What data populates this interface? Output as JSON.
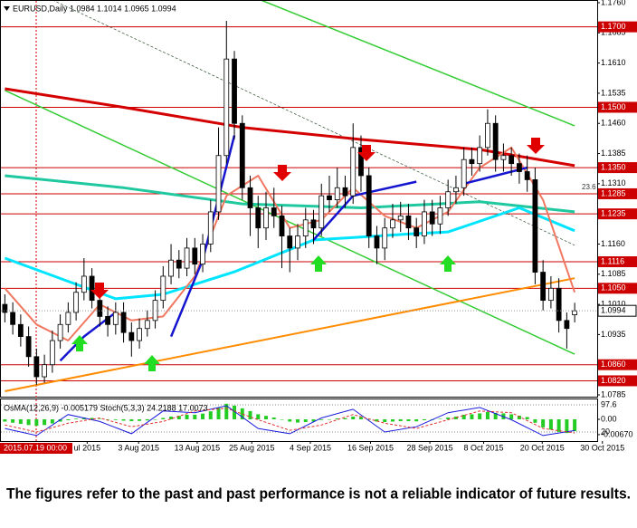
{
  "chart_data": [
    {
      "type": "candlestick",
      "title": "EURUSD,Daily  1.0984 1.1014 1.0965 1.0994",
      "cursor_label": "2015.07.19 00:00",
      "x": [
        0,
        1,
        2,
        3,
        4,
        5,
        6,
        7,
        8,
        9,
        10,
        11,
        12,
        13,
        14,
        15,
        16,
        17,
        18,
        19,
        20,
        21,
        22,
        23,
        24,
        25,
        26,
        27,
        28,
        29,
        30,
        31,
        32,
        33,
        34,
        35,
        36,
        37,
        38,
        39,
        40,
        41,
        42,
        43,
        44,
        45,
        46,
        47,
        48,
        49,
        50,
        51,
        52,
        53,
        54,
        55,
        56,
        57,
        58,
        59,
        60,
        61,
        62,
        63,
        64,
        65,
        66,
        67,
        68,
        69,
        70,
        71,
        72
      ],
      "open": [
        1.101,
        1.099,
        1.096,
        1.093,
        1.088,
        1.083,
        1.086,
        1.092,
        1.096,
        1.099,
        1.104,
        1.108,
        1.102,
        1.098,
        1.096,
        1.099,
        1.094,
        1.092,
        1.095,
        1.097,
        1.102,
        1.108,
        1.112,
        1.11,
        1.115,
        1.111,
        1.116,
        1.124,
        1.138,
        1.162,
        1.146,
        1.13,
        1.125,
        1.12,
        1.125,
        1.123,
        1.118,
        1.115,
        1.118,
        1.122,
        1.12,
        1.128,
        1.127,
        1.13,
        1.128,
        1.14,
        1.133,
        1.118,
        1.115,
        1.12,
        1.122,
        1.123,
        1.12,
        1.118,
        1.124,
        1.121,
        1.125,
        1.129,
        1.13,
        1.137,
        1.136,
        1.14,
        1.146,
        1.137,
        1.138,
        1.136,
        1.134,
        1.132,
        1.109,
        1.102,
        1.105,
        1.097,
        1.0984
      ],
      "high": [
        1.1035,
        1.1015,
        1.0985,
        1.0955,
        1.09,
        1.0885,
        1.0945,
        1.0985,
        1.1015,
        1.1065,
        1.1125,
        1.11,
        1.1045,
        1.1005,
        1.1015,
        1.1015,
        1.0965,
        1.0975,
        1.0995,
        1.1045,
        1.1105,
        1.116,
        1.1145,
        1.1175,
        1.1175,
        1.1185,
        1.127,
        1.145,
        1.1715,
        1.164,
        1.148,
        1.133,
        1.128,
        1.129,
        1.13,
        1.1255,
        1.12,
        1.121,
        1.125,
        1.1245,
        1.131,
        1.133,
        1.135,
        1.133,
        1.146,
        1.143,
        1.135,
        1.1205,
        1.1225,
        1.126,
        1.1265,
        1.126,
        1.1225,
        1.127,
        1.127,
        1.128,
        1.132,
        1.133,
        1.14,
        1.14,
        1.143,
        1.1495,
        1.148,
        1.141,
        1.14,
        1.1385,
        1.138,
        1.135,
        1.112,
        1.108,
        1.1075,
        1.099,
        1.1014
      ],
      "low": [
        1.0965,
        1.0935,
        1.0905,
        1.0855,
        1.081,
        1.0815,
        1.084,
        1.09,
        1.094,
        1.097,
        1.102,
        1.1,
        1.0955,
        1.093,
        1.0935,
        1.0915,
        1.088,
        1.09,
        1.093,
        1.095,
        1.1,
        1.106,
        1.1075,
        1.108,
        1.1085,
        1.109,
        1.114,
        1.122,
        1.136,
        1.142,
        1.127,
        1.118,
        1.115,
        1.117,
        1.12,
        1.11,
        1.109,
        1.112,
        1.115,
        1.116,
        1.118,
        1.124,
        1.125,
        1.125,
        1.126,
        1.129,
        1.115,
        1.111,
        1.112,
        1.1175,
        1.119,
        1.117,
        1.115,
        1.116,
        1.118,
        1.1185,
        1.123,
        1.126,
        1.128,
        1.133,
        1.134,
        1.138,
        1.134,
        1.134,
        1.133,
        1.131,
        1.129,
        1.106,
        1.0995,
        1.1,
        1.094,
        1.09,
        1.0965
      ],
      "close": [
        1.099,
        1.096,
        1.093,
        1.088,
        1.083,
        1.086,
        1.092,
        1.096,
        1.099,
        1.104,
        1.108,
        1.102,
        1.098,
        1.096,
        1.099,
        1.094,
        1.092,
        1.095,
        1.097,
        1.102,
        1.108,
        1.112,
        1.11,
        1.115,
        1.111,
        1.116,
        1.124,
        1.138,
        1.162,
        1.146,
        1.13,
        1.125,
        1.12,
        1.125,
        1.123,
        1.118,
        1.115,
        1.118,
        1.122,
        1.12,
        1.128,
        1.127,
        1.13,
        1.128,
        1.14,
        1.133,
        1.118,
        1.115,
        1.12,
        1.122,
        1.123,
        1.12,
        1.118,
        1.124,
        1.121,
        1.125,
        1.129,
        1.13,
        1.137,
        1.136,
        1.14,
        1.146,
        1.137,
        1.138,
        1.136,
        1.134,
        1.132,
        1.109,
        1.102,
        1.105,
        1.097,
        1.095,
        1.0994
      ],
      "bull_color": "#ffffff",
      "bear_color": "#000000",
      "xlim": [
        -0.5,
        74.5
      ],
      "ylim": [
        1.0785,
        1.176
      ],
      "yticks": [
        {
          "value": 1.176,
          "label": "1.1760"
        },
        1.1685,
        {
          "value": 1.161,
          "label": "1.1610"
        },
        1.1535,
        {
          "value": 1.146,
          "label": "1.1460"
        },
        1.1385,
        {
          "value": 1.131,
          "label": "1.1310"
        },
        {
          "value": 1.116,
          "label": "1.1160"
        },
        1.1085,
        {
          "value": 1.101,
          "label": "1.1010"
        },
        1.0935,
        1.0785
      ],
      "xticks": [
        {
          "value": 10.4,
          "label": "ul 2015"
        },
        {
          "value": 16.9,
          "label": "3 Aug 2015"
        },
        {
          "value": 24.3,
          "label": "13 Aug 2015"
        },
        {
          "value": 31.2,
          "label": "25 Aug 2015"
        },
        {
          "value": 38.6,
          "label": "4 Sep 2015"
        },
        {
          "value": 46.2,
          "label": "16 Sep 2015"
        },
        {
          "value": 53.7,
          "label": "28 Sep 2015"
        },
        {
          "value": 60.5,
          "label": "8 Oct 2015"
        },
        {
          "value": 67.9,
          "label": "20 Oct 2015"
        },
        {
          "value": 75.5,
          "label": "30 Oct 2015"
        }
      ],
      "levels": {
        "color": "#cc0000",
        "values": [
          1.17,
          1.15,
          1.135,
          1.1285,
          1.1235,
          1.1116,
          1.105,
          1.086,
          1.082
        ],
        "value_labels": [
          "1.1700",
          "1.1500",
          "1.1350",
          "1.1285",
          "1.1235",
          "1.1116",
          "1.1050",
          "1.0860",
          "1.0820"
        ]
      },
      "last_price": 1.0994,
      "annotations": [
        {
          "text": "23.6",
          "y": 1.1301
        }
      ],
      "lines": [
        {
          "color": "#2f4f2f",
          "width": 0.7,
          "dash": "3,2",
          "x": [
            6,
            72
          ],
          "values": [
            1.1767,
            1.1157
          ]
        },
        {
          "color": "#33cc33",
          "width": 1.5,
          "x": [
            32.3,
            72
          ],
          "values": [
            1.1767,
            1.1454
          ]
        },
        {
          "color": "#33cc33",
          "width": 1.5,
          "x": [
            0,
            72
          ],
          "values": [
            1.1542,
            1.0886
          ]
        },
        {
          "color": "#ff8c00",
          "width": 2,
          "x": [
            0,
            72
          ],
          "values": [
            1.0794,
            1.1075
          ]
        },
        {
          "color": "#d40000",
          "width": 3,
          "x": [
            0,
            15,
            30,
            45,
            60,
            72
          ],
          "values": [
            1.1546,
            1.15,
            1.145,
            1.142,
            1.1395,
            1.1355
          ]
        },
        {
          "color": "#20c8a0",
          "width": 3,
          "x": [
            0,
            15,
            30,
            45,
            60,
            72
          ],
          "values": [
            1.133,
            1.13,
            1.126,
            1.125,
            1.1265,
            1.124
          ]
        },
        {
          "color": "#00e5ff",
          "width": 3,
          "x": [
            0,
            14,
            20,
            29,
            39,
            51,
            56,
            65,
            72
          ],
          "values": [
            1.1125,
            1.1024,
            1.1035,
            1.1091,
            1.117,
            1.1185,
            1.119,
            1.125,
            1.1193
          ]
        },
        {
          "color": "#f07860",
          "width": 2,
          "x": [
            0,
            4,
            8,
            12,
            16,
            20,
            24,
            28,
            32,
            36,
            40,
            44,
            48,
            52,
            56,
            60,
            64,
            68,
            72
          ],
          "values": [
            1.105,
            1.096,
            1.092,
            1.101,
            1.097,
            1.098,
            1.108,
            1.128,
            1.133,
            1.12,
            1.122,
            1.13,
            1.123,
            1.12,
            1.124,
            1.135,
            1.14,
            1.127,
            1.104
          ]
        },
        {
          "color": "#1515d0",
          "width": 2.5,
          "x": [
            7,
            10,
            14,
            15,
            21,
            25,
            29,
            30,
            39,
            44,
            52,
            53,
            58,
            62,
            66
          ],
          "values": [
            1.087,
            1.093,
            1.099,
            null,
            1.093,
            1.112,
            1.143,
            null,
            1.117,
            1.128,
            1.1315,
            null,
            1.131,
            1.133,
            1.135
          ]
        }
      ]
    },
    {
      "type": "osma-stoch",
      "title": "OsMA(12,26,9) -0.005179 Stoch(5,3,3) 24.2188 17.0073",
      "color": "#22cc22",
      "xlim": [
        -0.5,
        74.5
      ],
      "x": [
        0,
        1,
        2,
        3,
        4,
        5,
        6,
        7,
        8,
        9,
        10,
        11,
        12,
        13,
        14,
        15,
        16,
        17,
        18,
        19,
        20,
        21,
        22,
        23,
        24,
        25,
        26,
        27,
        28,
        29,
        30,
        31,
        32,
        33,
        34,
        35,
        36,
        37,
        38,
        39,
        40,
        41,
        42,
        43,
        44,
        45,
        46,
        47,
        48,
        49,
        50,
        51,
        52,
        53,
        54,
        55,
        56,
        57,
        58,
        59,
        60,
        61,
        62,
        63,
        64,
        65,
        66,
        67,
        68,
        69,
        70,
        71,
        72
      ],
      "values": [
        -0.001,
        -0.0015,
        -0.002,
        -0.0025,
        -0.0028,
        -0.0025,
        -0.0018,
        -0.001,
        -0.0004,
        0.0003,
        0.0008,
        0.0006,
        0.0002,
        -0.0002,
        -0.0003,
        -0.0006,
        -0.0008,
        -0.0007,
        -0.0005,
        -0.0001,
        0.0006,
        0.0012,
        0.0015,
        0.002,
        0.002,
        0.0025,
        0.0035,
        0.005,
        0.0068,
        0.006,
        0.0048,
        0.0036,
        0.0022,
        0.0015,
        0.0008,
        -0.0002,
        -0.001,
        -0.0014,
        -0.0012,
        -0.001,
        -0.0003,
        0.0,
        0.0004,
        0.0005,
        0.0012,
        0.001,
        -0.0002,
        -0.001,
        -0.0012,
        -0.001,
        -0.0008,
        -0.0008,
        -0.0009,
        -0.0004,
        -0.0003,
        0.0002,
        0.0008,
        0.0012,
        0.002,
        0.0022,
        0.0026,
        0.0032,
        0.0028,
        0.0026,
        0.0022,
        0.0016,
        0.001,
        -0.0015,
        -0.0035,
        -0.0045,
        -0.0055,
        -0.006,
        -0.005179
      ],
      "ylim": [
        -0.0095,
        0.0087
      ],
      "yticks": [
        {
          "value": 0,
          "label": "0.00"
        },
        {
          "value": -0.0067,
          "label": "-0.00670"
        }
      ],
      "stoch": {
        "ylim": [
          -5.9,
          113.1
        ],
        "yticks": [
          97.6,
          20
        ],
        "x": [
          0,
          4,
          8,
          12,
          16,
          20,
          24,
          28,
          32,
          36,
          40,
          44,
          48,
          52,
          56,
          60,
          64,
          68,
          72
        ],
        "series": [
          {
            "color": "#1a1adc",
            "values": [
              30,
              10,
              70,
              50,
              15,
              80,
              75,
              95,
              30,
              15,
              60,
              85,
              20,
              35,
              75,
              90,
              55,
              10,
              24.2188
            ]
          },
          {
            "color": "#e03030",
            "dash": "3,2",
            "values": [
              40,
              20,
              45,
              60,
              35,
              50,
              80,
              88,
              55,
              25,
              40,
              70,
              45,
              30,
              55,
              80,
              75,
              30,
              17.0073
            ]
          }
        ]
      }
    }
  ],
  "footer": "The figures refer to the past and past performance is not a reliable indicator of future results."
}
